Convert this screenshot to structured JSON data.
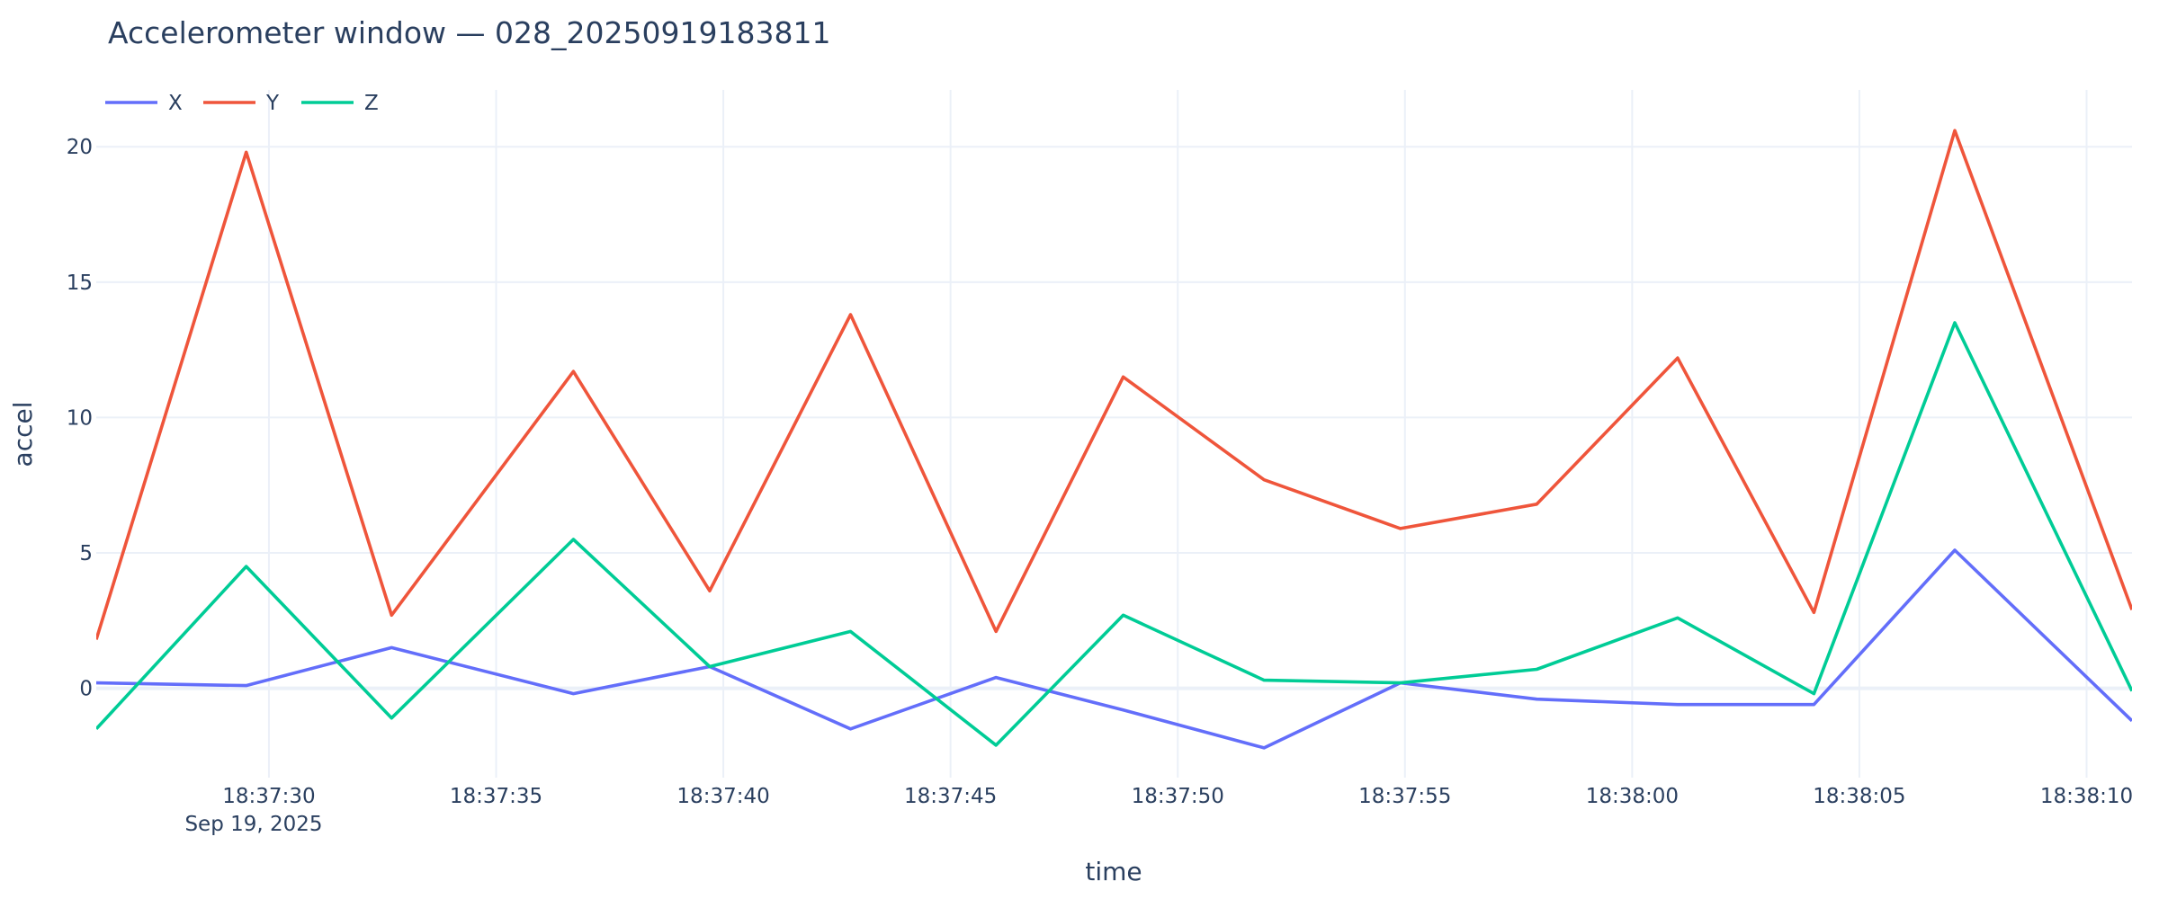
{
  "chart_data": {
    "type": "line",
    "title": "Accelerometer window — 028_20250919183811",
    "xlabel": "time",
    "ylabel": "accel",
    "x_axis_type": "time",
    "date_label": "Sep 19, 2025",
    "x": [
      "18:37:26.2",
      "18:37:29.5",
      "18:37:32.7",
      "18:37:36.7",
      "18:37:39.7",
      "18:37:42.8",
      "18:37:46.0",
      "18:37:48.8",
      "18:37:51.9",
      "18:37:54.9",
      "18:37:57.9",
      "18:38:01.0",
      "18:38:04.0",
      "18:38:07.1",
      "18:38:11.0"
    ],
    "xlim": [
      "18:37:26.2",
      "18:38:11.0"
    ],
    "x_ticks": [
      "18:37:30",
      "18:37:35",
      "18:37:40",
      "18:37:45",
      "18:37:50",
      "18:37:55",
      "18:38:00",
      "18:38:05",
      "18:38:10"
    ],
    "ylim": [
      -3.3,
      22.1
    ],
    "y_ticks": [
      0,
      5,
      10,
      15,
      20
    ],
    "grid": true,
    "legend_position": "top-left",
    "series": [
      {
        "name": "X",
        "color": "#636efa",
        "values": [
          0.2,
          0.1,
          1.5,
          -0.2,
          0.8,
          -1.5,
          0.4,
          -0.8,
          -2.2,
          0.2,
          -0.4,
          -0.6,
          -0.6,
          5.1,
          -1.2
        ]
      },
      {
        "name": "Y",
        "color": "#ef553b",
        "values": [
          1.8,
          19.8,
          2.7,
          11.7,
          3.6,
          13.8,
          2.1,
          11.5,
          7.7,
          5.9,
          6.8,
          12.2,
          2.8,
          20.6,
          2.9
        ]
      },
      {
        "name": "Z",
        "color": "#00cc96",
        "values": [
          -1.5,
          4.5,
          -1.1,
          5.5,
          0.8,
          2.1,
          -2.1,
          2.7,
          0.3,
          0.2,
          0.7,
          2.6,
          -0.2,
          13.5,
          -0.1
        ]
      }
    ]
  }
}
